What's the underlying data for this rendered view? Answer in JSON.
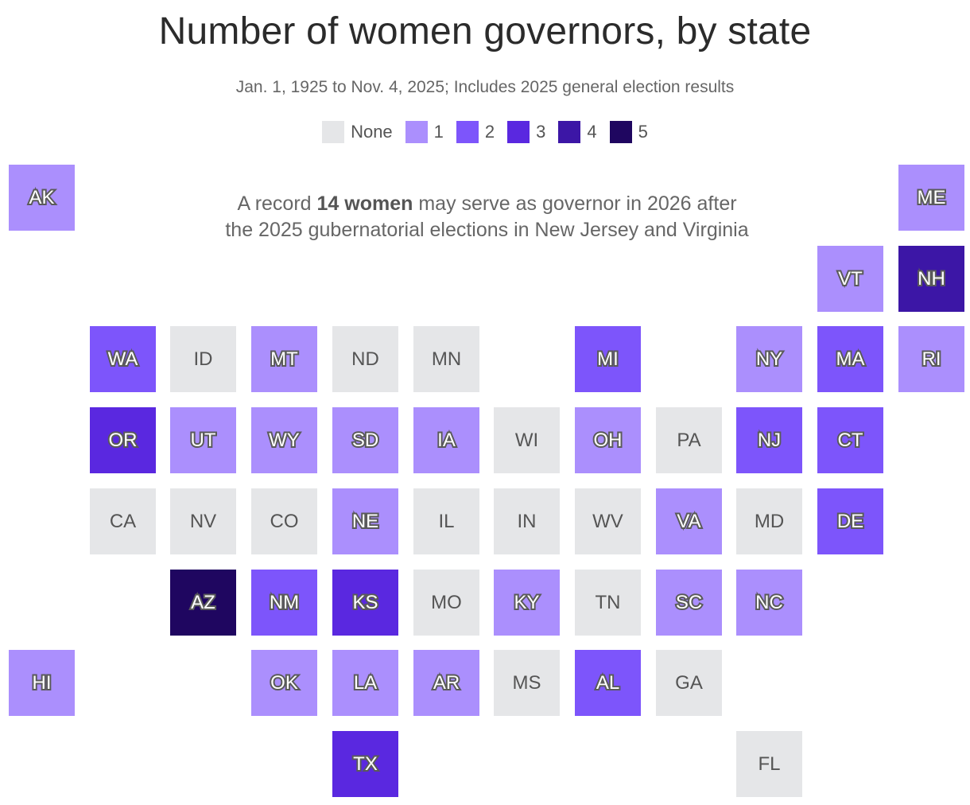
{
  "title": "Number of women governors, by state",
  "subtitle": "Jan. 1, 1925 to Nov. 4, 2025; Includes 2025 general election results",
  "annotation": {
    "pre": "A record ",
    "bold": "14 women",
    "post": " may serve as governor in 2026 after the 2025 gubernatorial elections in New Jersey and Virginia"
  },
  "legend": [
    {
      "label": "None",
      "value": 0
    },
    {
      "label": "1",
      "value": 1
    },
    {
      "label": "2",
      "value": 2
    },
    {
      "label": "3",
      "value": 3
    },
    {
      "label": "4",
      "value": 4
    },
    {
      "label": "5",
      "value": 5
    }
  ],
  "colors": {
    "0": "#e5e6e8",
    "1": "#ab8ffd",
    "2": "#7d55fb",
    "3": "#5a28e0",
    "4": "#3c16a6",
    "5": "#1f0660"
  },
  "states": [
    {
      "abbr": "AK",
      "value": 1,
      "row": 0,
      "col": 0
    },
    {
      "abbr": "ME",
      "value": 1,
      "row": 0,
      "col": 11
    },
    {
      "abbr": "VT",
      "value": 1,
      "row": 1,
      "col": 10
    },
    {
      "abbr": "NH",
      "value": 4,
      "row": 1,
      "col": 11
    },
    {
      "abbr": "WA",
      "value": 2,
      "row": 2,
      "col": 1
    },
    {
      "abbr": "ID",
      "value": 0,
      "row": 2,
      "col": 2
    },
    {
      "abbr": "MT",
      "value": 1,
      "row": 2,
      "col": 3
    },
    {
      "abbr": "ND",
      "value": 0,
      "row": 2,
      "col": 4
    },
    {
      "abbr": "MN",
      "value": 0,
      "row": 2,
      "col": 5
    },
    {
      "abbr": "MI",
      "value": 2,
      "row": 2,
      "col": 7
    },
    {
      "abbr": "NY",
      "value": 1,
      "row": 2,
      "col": 9
    },
    {
      "abbr": "MA",
      "value": 2,
      "row": 2,
      "col": 10
    },
    {
      "abbr": "RI",
      "value": 1,
      "row": 2,
      "col": 11
    },
    {
      "abbr": "OR",
      "value": 3,
      "row": 3,
      "col": 1
    },
    {
      "abbr": "UT",
      "value": 1,
      "row": 3,
      "col": 2
    },
    {
      "abbr": "WY",
      "value": 1,
      "row": 3,
      "col": 3
    },
    {
      "abbr": "SD",
      "value": 1,
      "row": 3,
      "col": 4
    },
    {
      "abbr": "IA",
      "value": 1,
      "row": 3,
      "col": 5
    },
    {
      "abbr": "WI",
      "value": 0,
      "row": 3,
      "col": 6
    },
    {
      "abbr": "OH",
      "value": 1,
      "row": 3,
      "col": 7
    },
    {
      "abbr": "PA",
      "value": 0,
      "row": 3,
      "col": 8
    },
    {
      "abbr": "NJ",
      "value": 2,
      "row": 3,
      "col": 9
    },
    {
      "abbr": "CT",
      "value": 2,
      "row": 3,
      "col": 10
    },
    {
      "abbr": "CA",
      "value": 0,
      "row": 4,
      "col": 1
    },
    {
      "abbr": "NV",
      "value": 0,
      "row": 4,
      "col": 2
    },
    {
      "abbr": "CO",
      "value": 0,
      "row": 4,
      "col": 3
    },
    {
      "abbr": "NE",
      "value": 1,
      "row": 4,
      "col": 4
    },
    {
      "abbr": "IL",
      "value": 0,
      "row": 4,
      "col": 5
    },
    {
      "abbr": "IN",
      "value": 0,
      "row": 4,
      "col": 6
    },
    {
      "abbr": "WV",
      "value": 0,
      "row": 4,
      "col": 7
    },
    {
      "abbr": "VA",
      "value": 1,
      "row": 4,
      "col": 8
    },
    {
      "abbr": "MD",
      "value": 0,
      "row": 4,
      "col": 9
    },
    {
      "abbr": "DE",
      "value": 2,
      "row": 4,
      "col": 10
    },
    {
      "abbr": "AZ",
      "value": 5,
      "row": 5,
      "col": 2
    },
    {
      "abbr": "NM",
      "value": 2,
      "row": 5,
      "col": 3
    },
    {
      "abbr": "KS",
      "value": 3,
      "row": 5,
      "col": 4
    },
    {
      "abbr": "MO",
      "value": 0,
      "row": 5,
      "col": 5
    },
    {
      "abbr": "KY",
      "value": 1,
      "row": 5,
      "col": 6
    },
    {
      "abbr": "TN",
      "value": 0,
      "row": 5,
      "col": 7
    },
    {
      "abbr": "SC",
      "value": 1,
      "row": 5,
      "col": 8
    },
    {
      "abbr": "NC",
      "value": 1,
      "row": 5,
      "col": 9
    },
    {
      "abbr": "HI",
      "value": 1,
      "row": 6,
      "col": 0
    },
    {
      "abbr": "OK",
      "value": 1,
      "row": 6,
      "col": 3
    },
    {
      "abbr": "LA",
      "value": 1,
      "row": 6,
      "col": 4
    },
    {
      "abbr": "AR",
      "value": 1,
      "row": 6,
      "col": 5
    },
    {
      "abbr": "MS",
      "value": 0,
      "row": 6,
      "col": 6
    },
    {
      "abbr": "AL",
      "value": 2,
      "row": 6,
      "col": 7
    },
    {
      "abbr": "GA",
      "value": 0,
      "row": 6,
      "col": 8
    },
    {
      "abbr": "TX",
      "value": 3,
      "row": 7,
      "col": 4
    },
    {
      "abbr": "FL",
      "value": 0,
      "row": 7,
      "col": 9
    }
  ]
}
